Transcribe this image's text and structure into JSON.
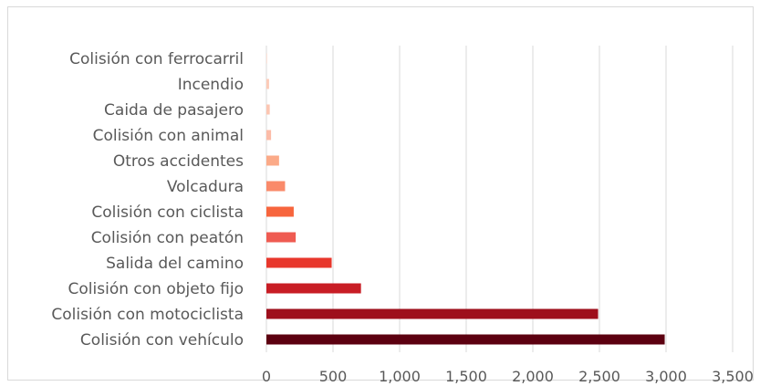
{
  "chart_data": {
    "type": "bar",
    "orientation": "horizontal",
    "title": "",
    "xlabel": "",
    "ylabel": "",
    "categories": [
      "Colisión con vehículo",
      "Colisión con motociclista",
      "Colisión con objeto fijo",
      "Salida del camino",
      "Colisión con peatón",
      "Colisión con ciclista",
      "Volcadura",
      "Otros accidentes",
      "Colisión con animal",
      "Caida de pasajero",
      "Incendio",
      "Colisión con ferrocarril"
    ],
    "values": [
      2990,
      2490,
      710,
      490,
      220,
      205,
      140,
      95,
      35,
      25,
      20,
      5
    ],
    "colors": [
      "#5c0010",
      "#9e0f1c",
      "#c81d25",
      "#e8372c",
      "#ef5b52",
      "#f7653d",
      "#fa8a6a",
      "#fbaa88",
      "#fcbca8",
      "#fcc6b2",
      "#fccbb8",
      "#fdd9cb"
    ],
    "xlim": [
      0,
      3500
    ],
    "xticks": [
      0,
      500,
      1000,
      1500,
      2000,
      2500,
      3000,
      3500
    ],
    "xtick_labels": [
      "0",
      "500",
      "1,000",
      "1,500",
      "2,000",
      "2,500",
      "3,000",
      "3,500"
    ],
    "grid": "vertical",
    "legend": "none"
  }
}
